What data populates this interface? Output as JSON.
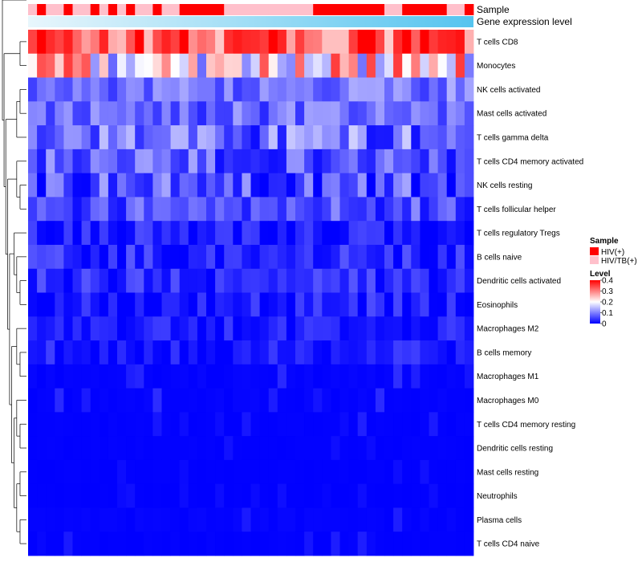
{
  "chart_data": {
    "type": "heatmap",
    "title": "",
    "annotations": {
      "sample_label": "Sample",
      "expression_label": "Gene expression level"
    },
    "columns": 50,
    "sample_groups": [
      1,
      0,
      1,
      1,
      0,
      1,
      1,
      0,
      1,
      0,
      1,
      0,
      1,
      1,
      0,
      1,
      1,
      0,
      0,
      0,
      0,
      0,
      1,
      1,
      1,
      1,
      1,
      1,
      1,
      1,
      1,
      1,
      0,
      0,
      0,
      0,
      0,
      0,
      0,
      0,
      1,
      1,
      0,
      0,
      0,
      0,
      0,
      1,
      1,
      0
    ],
    "legend": {
      "sample": {
        "title": "Sample",
        "entries": [
          "HIV(+)",
          "HIV/TB(+)"
        ],
        "colors": [
          "#ff0000",
          "#ffc0cb"
        ]
      },
      "level": {
        "title": "Level",
        "ticks": [
          0.4,
          0.3,
          0.2,
          0.1,
          0
        ],
        "range": [
          0,
          0.4
        ],
        "colors": [
          "#0000ff",
          "#ffffff",
          "#ff0000"
        ]
      }
    },
    "rows": [
      {
        "label": "T cells CD8",
        "mean": 0.34,
        "spread": 0.12
      },
      {
        "label": "Monocytes",
        "mean": 0.22,
        "spread": 0.14
      },
      {
        "label": "NK cells activated",
        "mean": 0.09,
        "spread": 0.05
      },
      {
        "label": "Mast cells activated",
        "mean": 0.08,
        "spread": 0.05
      },
      {
        "label": "T cells gamma delta",
        "mean": 0.09,
        "spread": 0.08
      },
      {
        "label": "T cells CD4 memory activated",
        "mean": 0.07,
        "spread": 0.06
      },
      {
        "label": "NK cells resting",
        "mean": 0.06,
        "spread": 0.07
      },
      {
        "label": "T cells follicular helper",
        "mean": 0.06,
        "spread": 0.05
      },
      {
        "label": "T cells regulatory  Tregs",
        "mean": 0.02,
        "spread": 0.04
      },
      {
        "label": "B cells naive",
        "mean": 0.03,
        "spread": 0.04
      },
      {
        "label": "Dendritic cells activated",
        "mean": 0.03,
        "spread": 0.04
      },
      {
        "label": "Eosinophils",
        "mean": 0.02,
        "spread": 0.04
      },
      {
        "label": "Macrophages M2",
        "mean": 0.02,
        "spread": 0.03
      },
      {
        "label": "B cells memory",
        "mean": 0.02,
        "spread": 0.03
      },
      {
        "label": "Macrophages M1",
        "mean": 0.01,
        "spread": 0.03
      },
      {
        "label": "Macrophages M0",
        "mean": 0.01,
        "spread": 0.03
      },
      {
        "label": "T cells CD4 memory resting",
        "mean": 0.005,
        "spread": 0.02
      },
      {
        "label": "Dendritic cells resting",
        "mean": 0.005,
        "spread": 0.02
      },
      {
        "label": "Mast cells resting",
        "mean": 0.003,
        "spread": 0.01
      },
      {
        "label": "Neutrophils",
        "mean": 0.002,
        "spread": 0.01
      },
      {
        "label": "Plasma cells",
        "mean": 0.01,
        "spread": 0.04
      },
      {
        "label": "T cells CD4 naive",
        "mean": 0.005,
        "spread": 0.02
      }
    ]
  }
}
